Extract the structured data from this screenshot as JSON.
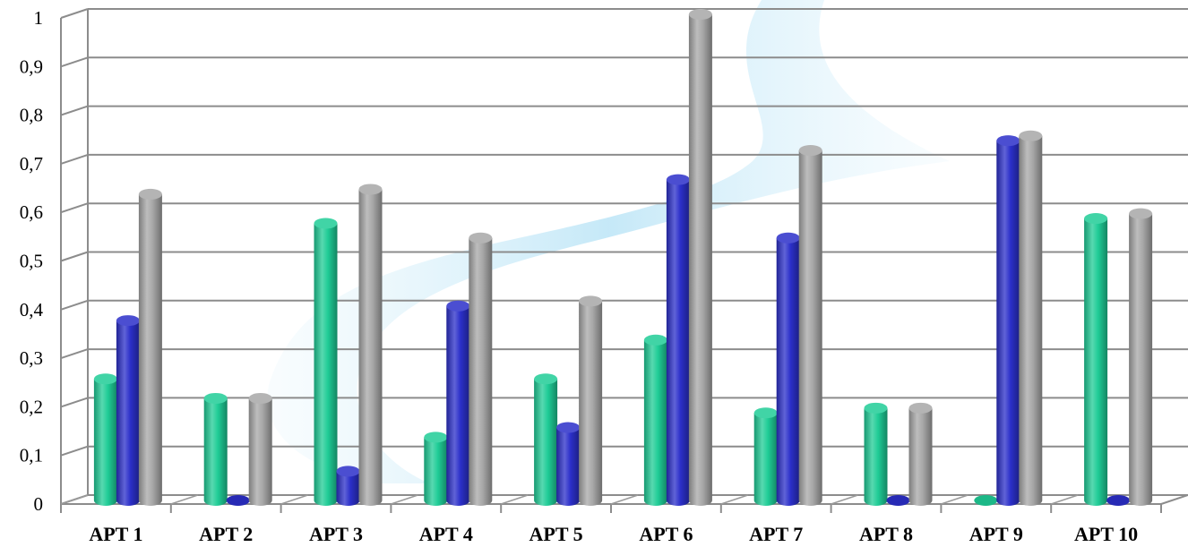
{
  "chart_data": {
    "type": "bar",
    "categories": [
      "APT 1",
      "APT 2",
      "APT 3",
      "APT 4",
      "APT 5",
      "APT 6",
      "APT 7",
      "APT 8",
      "APT 9",
      "APT 10"
    ],
    "series": [
      {
        "values": [
          0.25,
          0.21,
          0.57,
          0.13,
          0.25,
          0.33,
          0.18,
          0.19,
          0.0,
          0.58
        ],
        "color": "#1fcc96"
      },
      {
        "values": [
          0.37,
          0.0,
          0.06,
          0.4,
          0.15,
          0.66,
          0.54,
          0.0,
          0.74,
          0.0
        ],
        "color": "#2b2fc9"
      },
      {
        "values": [
          0.63,
          0.21,
          0.64,
          0.54,
          0.41,
          1.0,
          0.72,
          0.19,
          0.75,
          0.59
        ],
        "color": "#a7a7a7"
      }
    ],
    "yticks": [
      "0",
      "0,1",
      "0,2",
      "0,3",
      "0,4",
      "0,5",
      "0,6",
      "0,7",
      "0,8",
      "0,9",
      "1"
    ],
    "ylim": [
      0,
      1
    ],
    "grid": true,
    "legend": "none",
    "style": "3d-cylinder"
  }
}
